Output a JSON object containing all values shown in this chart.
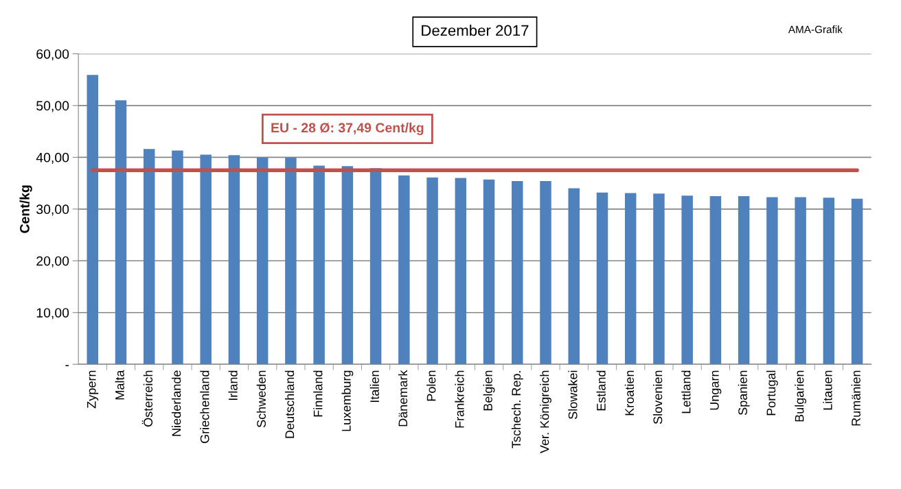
{
  "chart_data": {
    "type": "bar",
    "title": "Dezember 2017",
    "ylabel": "Cent/kg",
    "categories": [
      "Zypern",
      "Malta",
      "Österreich",
      "Niederlande",
      "Griechenland",
      "Irland",
      "Schweden",
      "Deutschland",
      "Finnland",
      "Luxemburg",
      "Italien",
      "Dänemark",
      "Polen",
      "Frankreich",
      "Belgien",
      "Tschech. Rep.",
      "Ver. Königreich",
      "Slowakei",
      "Estland",
      "Kroatien",
      "Slovenien",
      "Lettland",
      "Ungarn",
      "Spanien",
      "Portugal",
      "Bulgarien",
      "Litauen",
      "Rumänien"
    ],
    "values": [
      55.9,
      51.0,
      41.6,
      41.3,
      40.5,
      40.4,
      39.9,
      39.9,
      38.4,
      38.3,
      37.9,
      36.5,
      36.1,
      36.0,
      35.7,
      35.4,
      35.4,
      34.0,
      33.2,
      33.1,
      33.0,
      32.6,
      32.5,
      32.5,
      32.3,
      32.3,
      32.2,
      32.0
    ],
    "color": "#4f81bd",
    "ylim": [
      0,
      60
    ],
    "yticks": [
      {
        "value": 0,
        "label": "-"
      },
      {
        "value": 10,
        "label": "10,00"
      },
      {
        "value": 20,
        "label": "20,00"
      },
      {
        "value": 30,
        "label": "30,00"
      },
      {
        "value": 40,
        "label": "40,00"
      },
      {
        "value": 50,
        "label": "50,00"
      },
      {
        "value": 60,
        "label": "60,00"
      }
    ],
    "grid": "y",
    "ref_lines": [
      {
        "axis": "y",
        "value": 37.49,
        "label": "EU - 28 Ø: 37,49 Cent/kg",
        "color": "#c0504d",
        "line_style": "solid"
      }
    ],
    "annotations": [
      "AMA-Grafik"
    ]
  }
}
